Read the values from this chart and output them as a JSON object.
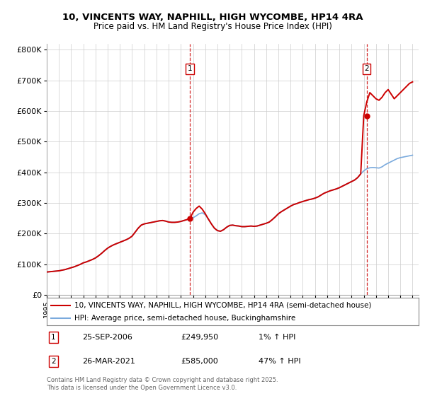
{
  "title": "10, VINCENTS WAY, NAPHILL, HIGH WYCOMBE, HP14 4RA",
  "subtitle": "Price paid vs. HM Land Registry's House Price Index (HPI)",
  "background_color": "#ffffff",
  "plot_bg_color": "#ffffff",
  "grid_color": "#cccccc",
  "hpi_color": "#7aaadd",
  "price_color": "#cc0000",
  "marker_color": "#cc0000",
  "vline_color": "#cc0000",
  "ylim": [
    0,
    820000
  ],
  "yticks": [
    0,
    100000,
    200000,
    300000,
    400000,
    500000,
    600000,
    700000,
    800000
  ],
  "ytick_labels": [
    "£0",
    "£100K",
    "£200K",
    "£300K",
    "£400K",
    "£500K",
    "£600K",
    "£700K",
    "£800K"
  ],
  "sale1_year": 2006.73,
  "sale1_price": 249950,
  "sale1_label": "1",
  "sale2_year": 2021.23,
  "sale2_price": 585000,
  "sale2_label": "2",
  "legend_entries": [
    "10, VINCENTS WAY, NAPHILL, HIGH WYCOMBE, HP14 4RA (semi-detached house)",
    "HPI: Average price, semi-detached house, Buckinghamshire"
  ],
  "table_entries": [
    {
      "label": "1",
      "date": "25-SEP-2006",
      "price": "£249,950",
      "change": "1% ↑ HPI"
    },
    {
      "label": "2",
      "date": "26-MAR-2021",
      "price": "£585,000",
      "change": "47% ↑ HPI"
    }
  ],
  "copyright_text": "Contains HM Land Registry data © Crown copyright and database right 2025.\nThis data is licensed under the Open Government Licence v3.0.",
  "hpi_data_x": [
    1995,
    1995.25,
    1995.5,
    1995.75,
    1996,
    1996.25,
    1996.5,
    1996.75,
    1997,
    1997.25,
    1997.5,
    1997.75,
    1998,
    1998.25,
    1998.5,
    1998.75,
    1999,
    1999.25,
    1999.5,
    1999.75,
    2000,
    2000.25,
    2000.5,
    2000.75,
    2001,
    2001.25,
    2001.5,
    2001.75,
    2002,
    2002.25,
    2002.5,
    2002.75,
    2003,
    2003.25,
    2003.5,
    2003.75,
    2004,
    2004.25,
    2004.5,
    2004.75,
    2005,
    2005.25,
    2005.5,
    2005.75,
    2006,
    2006.25,
    2006.5,
    2006.75,
    2007,
    2007.25,
    2007.5,
    2007.75,
    2008,
    2008.25,
    2008.5,
    2008.75,
    2009,
    2009.25,
    2009.5,
    2009.75,
    2010,
    2010.25,
    2010.5,
    2010.75,
    2011,
    2011.25,
    2011.5,
    2011.75,
    2012,
    2012.25,
    2012.5,
    2012.75,
    2013,
    2013.25,
    2013.5,
    2013.75,
    2014,
    2014.25,
    2014.5,
    2014.75,
    2015,
    2015.25,
    2015.5,
    2015.75,
    2016,
    2016.25,
    2016.5,
    2016.75,
    2017,
    2017.25,
    2017.5,
    2017.75,
    2018,
    2018.25,
    2018.5,
    2018.75,
    2019,
    2019.25,
    2019.5,
    2019.75,
    2020,
    2020.25,
    2020.5,
    2020.75,
    2021,
    2021.25,
    2021.5,
    2021.75,
    2022,
    2022.25,
    2022.5,
    2022.75,
    2023,
    2023.25,
    2023.5,
    2023.75,
    2024,
    2024.25,
    2024.5,
    2024.75,
    2025
  ],
  "hpi_data_y": [
    75000,
    76000,
    77000,
    78000,
    79000,
    81000,
    83000,
    86000,
    89000,
    92000,
    96000,
    100000,
    105000,
    108000,
    112000,
    116000,
    121000,
    128000,
    136000,
    145000,
    153000,
    159000,
    164000,
    168000,
    172000,
    176000,
    180000,
    185000,
    192000,
    205000,
    218000,
    228000,
    232000,
    234000,
    236000,
    238000,
    240000,
    242000,
    243000,
    241000,
    238000,
    237000,
    237000,
    238000,
    240000,
    243000,
    246000,
    249000,
    252000,
    258000,
    265000,
    268000,
    262000,
    248000,
    232000,
    218000,
    210000,
    208000,
    213000,
    221000,
    227000,
    228000,
    226000,
    225000,
    223000,
    223000,
    224000,
    225000,
    224000,
    225000,
    228000,
    231000,
    234000,
    238000,
    246000,
    255000,
    265000,
    272000,
    278000,
    284000,
    290000,
    295000,
    298000,
    302000,
    305000,
    308000,
    311000,
    313000,
    316000,
    320000,
    326000,
    332000,
    336000,
    340000,
    343000,
    346000,
    350000,
    355000,
    360000,
    365000,
    370000,
    375000,
    383000,
    395000,
    405000,
    412000,
    415000,
    416000,
    415000,
    414000,
    418000,
    425000,
    430000,
    435000,
    440000,
    445000,
    448000,
    450000,
    452000,
    454000,
    456000
  ],
  "price_data_x": [
    1995.0,
    1995.25,
    1995.5,
    1995.75,
    1996,
    1996.25,
    1996.5,
    1996.75,
    1997,
    1997.25,
    1997.5,
    1997.75,
    1998,
    1998.25,
    1998.5,
    1998.75,
    1999,
    1999.25,
    1999.5,
    1999.75,
    2000,
    2000.25,
    2000.5,
    2000.75,
    2001,
    2001.25,
    2001.5,
    2001.75,
    2002,
    2002.25,
    2002.5,
    2002.75,
    2003,
    2003.25,
    2003.5,
    2003.75,
    2004,
    2004.25,
    2004.5,
    2004.75,
    2005,
    2005.25,
    2005.5,
    2005.75,
    2006,
    2006.25,
    2006.5,
    2006.75,
    2007,
    2007.25,
    2007.5,
    2007.75,
    2008,
    2008.25,
    2008.5,
    2008.75,
    2009,
    2009.25,
    2009.5,
    2009.75,
    2010,
    2010.25,
    2010.5,
    2010.75,
    2011,
    2011.25,
    2011.5,
    2011.75,
    2012,
    2012.25,
    2012.5,
    2012.75,
    2013,
    2013.25,
    2013.5,
    2013.75,
    2014,
    2014.25,
    2014.5,
    2014.75,
    2015,
    2015.25,
    2015.5,
    2015.75,
    2016,
    2016.25,
    2016.5,
    2016.75,
    2017,
    2017.25,
    2017.5,
    2017.75,
    2018,
    2018.25,
    2018.5,
    2018.75,
    2019,
    2019.25,
    2019.5,
    2019.75,
    2020,
    2020.25,
    2020.5,
    2020.75,
    2021,
    2021.25,
    2021.5,
    2021.75,
    2022,
    2022.25,
    2022.5,
    2022.75,
    2023,
    2023.25,
    2023.5,
    2023.75,
    2024,
    2024.25,
    2024.5,
    2024.75,
    2025
  ],
  "price_data_y": [
    75000,
    76000,
    77000,
    78000,
    79000,
    81000,
    83000,
    86000,
    89000,
    92000,
    96000,
    100000,
    105000,
    108000,
    112000,
    116000,
    121000,
    128000,
    136000,
    145000,
    153000,
    159000,
    164000,
    168000,
    172000,
    176000,
    180000,
    185000,
    192000,
    205000,
    218000,
    228000,
    232000,
    234000,
    236000,
    238000,
    240000,
    242000,
    243000,
    241000,
    238000,
    237000,
    237000,
    238000,
    240000,
    243000,
    246000,
    249950,
    270000,
    282000,
    290000,
    280000,
    265000,
    248000,
    232000,
    218000,
    210000,
    208000,
    213000,
    221000,
    227000,
    228000,
    226000,
    225000,
    223000,
    223000,
    224000,
    225000,
    224000,
    225000,
    228000,
    231000,
    234000,
    238000,
    246000,
    255000,
    265000,
    272000,
    278000,
    284000,
    290000,
    295000,
    298000,
    302000,
    305000,
    308000,
    311000,
    313000,
    316000,
    320000,
    326000,
    332000,
    336000,
    340000,
    343000,
    346000,
    350000,
    355000,
    360000,
    365000,
    370000,
    375000,
    383000,
    395000,
    585000,
    630000,
    660000,
    650000,
    640000,
    635000,
    645000,
    660000,
    670000,
    655000,
    640000,
    650000,
    660000,
    670000,
    680000,
    690000,
    695000
  ]
}
